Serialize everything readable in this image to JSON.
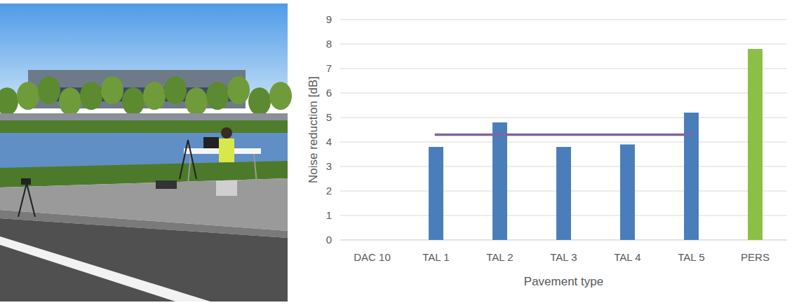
{
  "chart_data": {
    "type": "bar",
    "categories": [
      "DAC 10",
      "TAL 1",
      "TAL 2",
      "TAL 3",
      "TAL 4",
      "TAL 5",
      "PERS"
    ],
    "series": [
      {
        "values": [
          0,
          3.8,
          4.8,
          3.8,
          3.9,
          5.2,
          7.8
        ],
        "colors": [
          "#4a7ebb",
          "#4a7ebb",
          "#4a7ebb",
          "#4a7ebb",
          "#4a7ebb",
          "#4a7ebb",
          "#8cbf45"
        ]
      },
      {
        "type": "line",
        "color": "#8064a2",
        "values": [
          null,
          4.3,
          4.3,
          4.3,
          4.3,
          4.3,
          null
        ]
      }
    ],
    "x_label": "Pavement type",
    "y_label": "Noise reduction [dB]",
    "ylim": [
      0,
      9
    ],
    "yticks": [
      0,
      1,
      2,
      3,
      4,
      5,
      6,
      7,
      8,
      9
    ],
    "grid": true
  }
}
